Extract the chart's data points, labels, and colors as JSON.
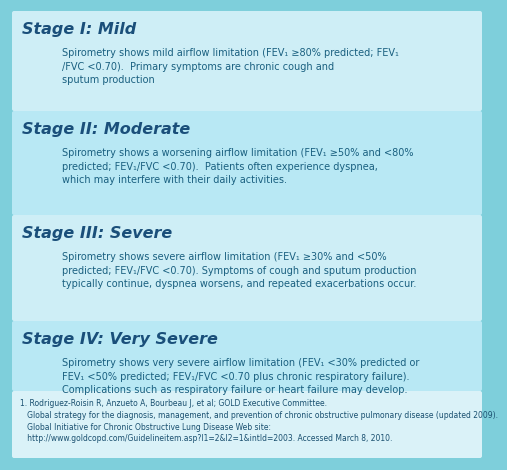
{
  "bg_color": "#7ecfdb",
  "block_colors": [
    "#ceeef6",
    "#b8e8f4",
    "#ceeef6",
    "#b8e8f4"
  ],
  "footer_color_bg": "#daf2f8",
  "title_color": "#1a4f7a",
  "body_color": "#1a6080",
  "footer_text_color": "#1a5070",
  "stages": [
    {
      "title": "Stage I: Mild",
      "body": "Spirometry shows mild airflow limitation (FEV₁ ≥80% predicted; FEV₁\n/FVC <0.70).  Primary symptoms are chronic cough and\nsputum production"
    },
    {
      "title": "Stage II: Moderate",
      "body": "Spirometry shows a worsening airflow limitation (FEV₁ ≥50% and <80%\npredicted; FEV₁/FVC <0.70).  Patients often experience dyspnea,\nwhich may interfere with their daily activities."
    },
    {
      "title": "Stage III: Severe",
      "body": "Spirometry shows severe airflow limitation (FEV₁ ≥30% and <50%\npredicted; FEV₁/FVC <0.70). Symptoms of cough and sputum production\ntypically continue, dyspnea worsens, and repeated exacerbations occur."
    },
    {
      "title": "Stage IV: Very Severe",
      "body": "Spirometry shows very severe airflow limitation (FEV₁ <30% predicted or\nFEV₁ <50% predicted; FEV₁/FVC <0.70 plus chronic respiratory failure).\nComplications such as respiratory failure or heart failure may develop."
    }
  ],
  "footer": "1. Rodriguez-Roisin R, Anzueto A, Bourbeau J, et al; GOLD Executive Committee.\n   Global strategy for the diagnosis, management, and prevention of chronic obstructive pulmonary disease (updated 2009).\n   Global Initiative for Chronic Obstructive Lung Disease Web site:\n   http://www.goldcopd.com/Guidelineitem.asp?l1=2&l2=1&intId=2003. Accessed March 8, 2010.",
  "title_fontsize": 11.5,
  "body_fontsize": 7.0,
  "footer_fontsize": 5.5
}
